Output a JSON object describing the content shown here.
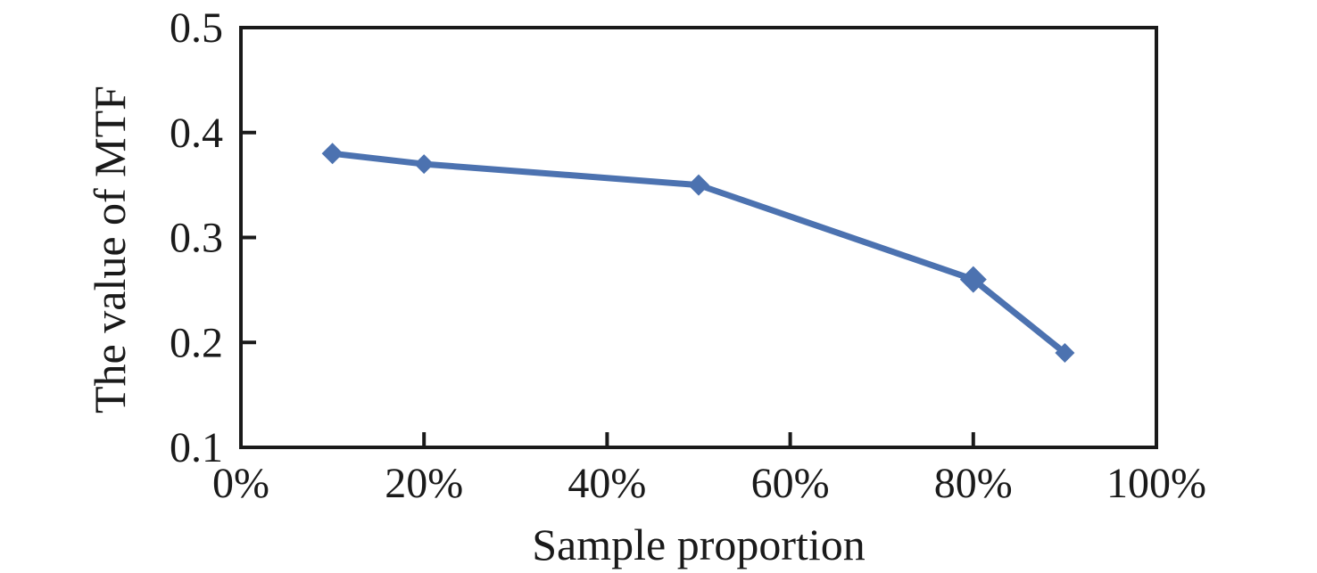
{
  "chart_data": {
    "type": "line",
    "title": "",
    "xlabel": "Sample proportion",
    "ylabel": "The value of MTF",
    "x": [
      10,
      20,
      50,
      80,
      90
    ],
    "y": [
      0.38,
      0.37,
      0.35,
      0.26,
      0.19
    ],
    "xlim": [
      0,
      100
    ],
    "ylim": [
      0.1,
      0.5
    ],
    "x_tick_values": [
      0,
      20,
      40,
      60,
      80,
      100
    ],
    "x_tick_labels": [
      "0%",
      "20%",
      "40%",
      "60%",
      "80%",
      "100%"
    ],
    "y_tick_values": [
      0.1,
      0.2,
      0.3,
      0.4,
      0.5
    ],
    "y_tick_labels": [
      "0.1",
      "0.2",
      "0.3",
      "0.4",
      "0.5"
    ],
    "grid": false,
    "legend": "none",
    "series_name": "MTF",
    "marker": "diamond",
    "marker_sizes": [
      12,
      11,
      12,
      15,
      11
    ],
    "line_width": 7,
    "line_color": "#4C72B0",
    "axis_color": "#1a1a1a"
  }
}
